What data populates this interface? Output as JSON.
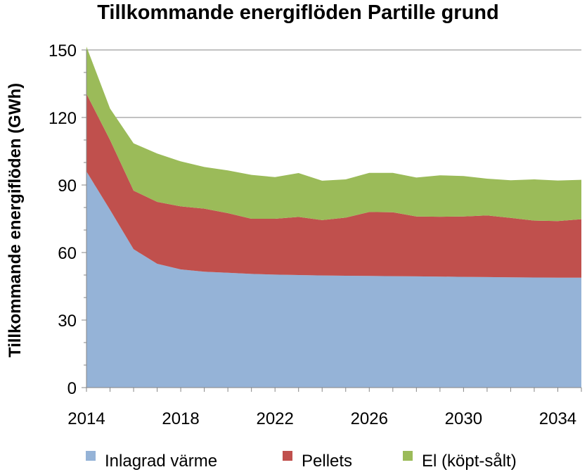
{
  "chart_data": {
    "type": "area",
    "stacked": true,
    "title": "Tillkommande energiflöden Partille grund",
    "ylabel": "Tillkommande energiflöden (GWh)",
    "xlabel": "",
    "x": [
      2014,
      2015,
      2016,
      2017,
      2018,
      2019,
      2020,
      2021,
      2022,
      2023,
      2024,
      2025,
      2026,
      2027,
      2028,
      2029,
      2030,
      2031,
      2032,
      2033,
      2034,
      2035
    ],
    "xticks": [
      "2014",
      "2018",
      "2022",
      "2026",
      "2030",
      "2034"
    ],
    "yticks": [
      "0",
      "30",
      "60",
      "90",
      "120",
      "150"
    ],
    "ylim": [
      0,
      150
    ],
    "xlim": [
      2014,
      2035
    ],
    "grid": "horizontal",
    "legend_position": "bottom",
    "series": [
      {
        "name": "Inlagrad värme",
        "color": "#95b3d7",
        "values": [
          96,
          79,
          61.5,
          55,
          52.5,
          51.5,
          51,
          50.5,
          50.2,
          50,
          49.8,
          49.7,
          49.6,
          49.5,
          49.4,
          49.3,
          49.2,
          49.1,
          49,
          48.9,
          48.8,
          48.8
        ]
      },
      {
        "name": "Pellets",
        "color": "#c0504d",
        "values": [
          34.5,
          31,
          26,
          27.5,
          28,
          28,
          26.5,
          24.5,
          24.8,
          25.8,
          24.6,
          25.8,
          28.4,
          28.4,
          26.6,
          26.6,
          26.8,
          27.4,
          26.4,
          25.3,
          25.2,
          26
        ]
      },
      {
        "name": "El (köpt-sålt)",
        "color": "#9bbb59",
        "values": [
          21,
          14,
          21,
          21.5,
          20,
          18.5,
          19,
          19.5,
          18.5,
          19.5,
          17.5,
          17,
          17.4,
          17.5,
          17.3,
          18.4,
          18,
          16.3,
          16.7,
          18.3,
          18,
          17.5
        ]
      }
    ]
  }
}
